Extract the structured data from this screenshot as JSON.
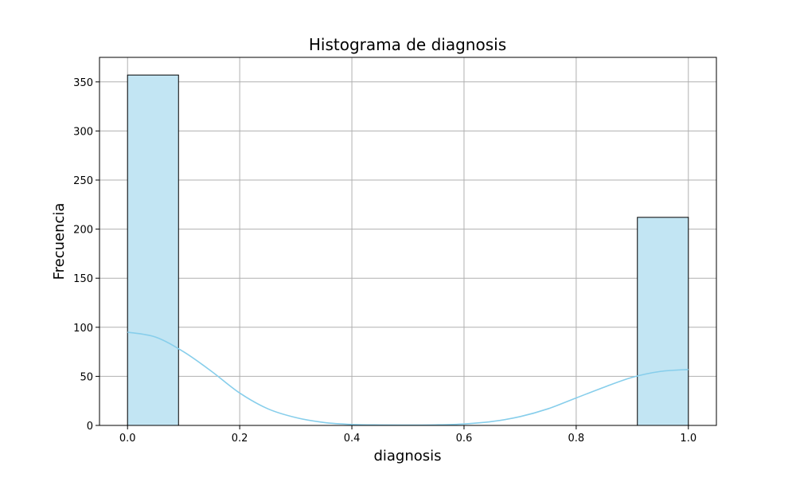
{
  "chart_data": {
    "type": "bar",
    "title": "Histograma de diagnosis",
    "xlabel": "diagnosis",
    "ylabel": "Frecuencia",
    "xlim": [
      -0.05,
      1.05
    ],
    "ylim": [
      0,
      375
    ],
    "xticks": [
      0.0,
      0.2,
      0.4,
      0.6,
      0.8,
      1.0
    ],
    "xtick_labels": [
      "0.0",
      "0.2",
      "0.4",
      "0.6",
      "0.8",
      "1.0"
    ],
    "yticks": [
      0,
      50,
      100,
      150,
      200,
      250,
      300,
      350
    ],
    "ytick_labels": [
      "0",
      "50",
      "100",
      "150",
      "200",
      "250",
      "300",
      "350"
    ],
    "bins": [
      {
        "x_start": 0.0,
        "x_end": 0.0909,
        "value": 357
      },
      {
        "x_start": 0.0909,
        "x_end": 0.1818,
        "value": 0
      },
      {
        "x_start": 0.1818,
        "x_end": 0.2727,
        "value": 0
      },
      {
        "x_start": 0.2727,
        "x_end": 0.3636,
        "value": 0
      },
      {
        "x_start": 0.3636,
        "x_end": 0.4545,
        "value": 0
      },
      {
        "x_start": 0.4545,
        "x_end": 0.5455,
        "value": 0
      },
      {
        "x_start": 0.5455,
        "x_end": 0.6364,
        "value": 0
      },
      {
        "x_start": 0.6364,
        "x_end": 0.7273,
        "value": 0
      },
      {
        "x_start": 0.7273,
        "x_end": 0.8182,
        "value": 0
      },
      {
        "x_start": 0.8182,
        "x_end": 0.9091,
        "value": 0
      },
      {
        "x_start": 0.9091,
        "x_end": 1.0,
        "value": 212
      }
    ],
    "kde": {
      "x": [
        0.0,
        0.05,
        0.1,
        0.15,
        0.2,
        0.25,
        0.3,
        0.35,
        0.4,
        0.45,
        0.5,
        0.55,
        0.6,
        0.65,
        0.7,
        0.75,
        0.8,
        0.85,
        0.9,
        0.95,
        1.0
      ],
      "y": [
        95,
        90,
        75,
        55,
        33,
        17,
        8,
        3,
        1,
        0.5,
        0.4,
        0.6,
        1.5,
        4,
        9,
        17,
        28,
        39,
        49,
        55,
        57
      ]
    },
    "grid": true,
    "colors": {
      "bar_fill": "#c2e5f3",
      "kde_line": "#87ceeb"
    }
  }
}
